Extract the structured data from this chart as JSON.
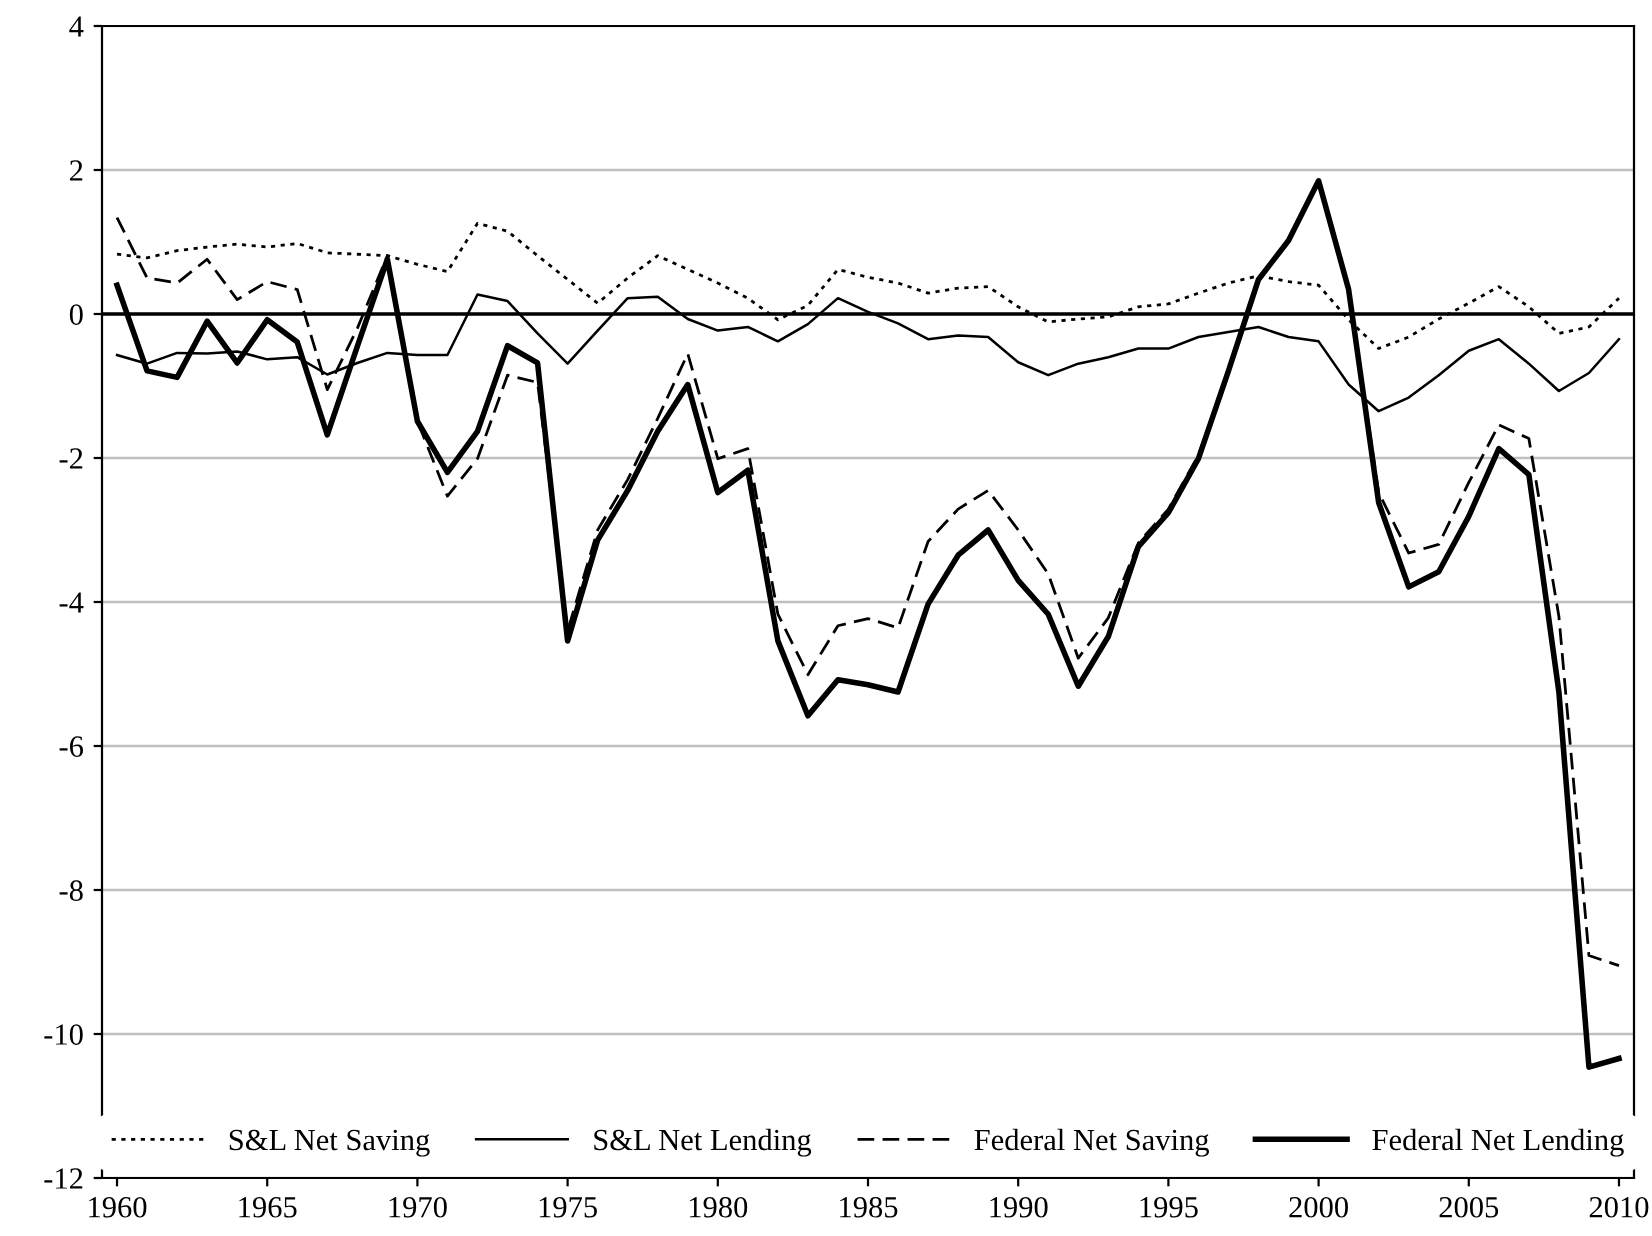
{
  "chart_data": {
    "type": "line",
    "x": [
      1960,
      1961,
      1962,
      1963,
      1964,
      1965,
      1966,
      1967,
      1968,
      1969,
      1970,
      1971,
      1972,
      1973,
      1974,
      1975,
      1976,
      1977,
      1978,
      1979,
      1980,
      1981,
      1982,
      1983,
      1984,
      1985,
      1986,
      1987,
      1988,
      1989,
      1990,
      1991,
      1992,
      1993,
      1994,
      1995,
      1996,
      1997,
      1998,
      1999,
      2000,
      2001,
      2002,
      2003,
      2004,
      2005,
      2006,
      2007,
      2008,
      2009,
      2010
    ],
    "series": [
      {
        "name": "S&L Net Saving",
        "color": "#000000",
        "line_style": "dotted",
        "values": [
          0.83,
          0.78,
          0.88,
          0.93,
          0.97,
          0.93,
          0.98,
          0.85,
          0.83,
          0.81,
          0.69,
          0.59,
          1.26,
          1.15,
          0.81,
          0.48,
          0.15,
          0.5,
          0.81,
          0.62,
          0.43,
          0.22,
          -0.08,
          0.12,
          0.62,
          0.51,
          0.43,
          0.29,
          0.36,
          0.38,
          0.1,
          -0.11,
          -0.07,
          -0.04,
          0.1,
          0.14,
          0.29,
          0.43,
          0.53,
          0.45,
          0.4,
          -0.08,
          -0.48,
          -0.32,
          -0.07,
          0.15,
          0.38,
          0.1,
          -0.27,
          -0.18,
          0.22
        ]
      },
      {
        "name": "S&L Net Lending",
        "color": "#000000",
        "line_style": "solid",
        "values": [
          -0.57,
          -0.69,
          -0.54,
          -0.55,
          -0.52,
          -0.63,
          -0.6,
          -0.84,
          -0.68,
          -0.54,
          -0.57,
          -0.57,
          0.27,
          0.18,
          -0.27,
          -0.69,
          -0.23,
          0.22,
          0.24,
          -0.07,
          -0.23,
          -0.18,
          -0.38,
          -0.14,
          0.22,
          0.03,
          -0.13,
          -0.35,
          -0.3,
          -0.32,
          -0.67,
          -0.85,
          -0.69,
          -0.6,
          -0.48,
          -0.48,
          -0.32,
          -0.25,
          -0.18,
          -0.32,
          -0.38,
          -0.98,
          -1.35,
          -1.16,
          -0.85,
          -0.51,
          -0.35,
          -0.69,
          -1.07,
          -0.82,
          -0.35
        ]
      },
      {
        "name": "Federal Net Saving",
        "color": "#000000",
        "line_style": "dashed",
        "values": [
          1.34,
          0.5,
          0.43,
          0.76,
          0.2,
          0.45,
          0.34,
          -1.05,
          -0.2,
          0.81,
          -1.49,
          -2.53,
          -2.01,
          -0.85,
          -0.95,
          -4.4,
          -3.0,
          -2.3,
          -1.45,
          -0.55,
          -2.01,
          -1.87,
          -4.17,
          -5.01,
          -4.33,
          -4.23,
          -4.36,
          -3.16,
          -2.71,
          -2.45,
          -3.0,
          -3.61,
          -4.78,
          -4.22,
          -3.18,
          -2.71,
          -1.96,
          -0.79,
          0.48,
          1.02,
          1.85,
          0.34,
          -2.48,
          -3.32,
          -3.2,
          -2.34,
          -1.54,
          -1.73,
          -4.2,
          -8.91,
          -9.05
        ]
      },
      {
        "name": "Federal Net Lending",
        "color": "#000000",
        "line_style": "solid",
        "values": [
          0.4,
          -0.79,
          -0.88,
          -0.1,
          -0.68,
          -0.08,
          -0.39,
          -1.68,
          -0.45,
          0.76,
          -1.49,
          -2.2,
          -1.63,
          -0.44,
          -0.68,
          -4.54,
          -3.14,
          -2.45,
          -1.63,
          -0.98,
          -2.48,
          -2.17,
          -4.54,
          -5.58,
          -5.08,
          -5.15,
          -5.25,
          -4.03,
          -3.35,
          -3.0,
          -3.7,
          -4.17,
          -5.17,
          -4.48,
          -3.23,
          -2.76,
          -2.01,
          -0.79,
          0.48,
          1.02,
          1.85,
          0.34,
          -2.62,
          -3.79,
          -3.58,
          -2.81,
          -1.87,
          -2.23,
          -5.25,
          -10.46,
          -10.34
        ]
      }
    ],
    "xlim": [
      1959.5,
      2010.5
    ],
    "xticks": [
      1960,
      1965,
      1970,
      1975,
      1980,
      1985,
      1990,
      1995,
      2000,
      2005,
      2010
    ],
    "ylim": [
      -12,
      4
    ],
    "yticks": [
      -12,
      -10,
      -8,
      -6,
      -4,
      -2,
      0,
      2,
      4
    ],
    "ref_lines": [
      {
        "axis": "y",
        "value": 0,
        "color": "#000000"
      }
    ],
    "grid": "y",
    "legend": "bottom",
    "marker": "none"
  }
}
